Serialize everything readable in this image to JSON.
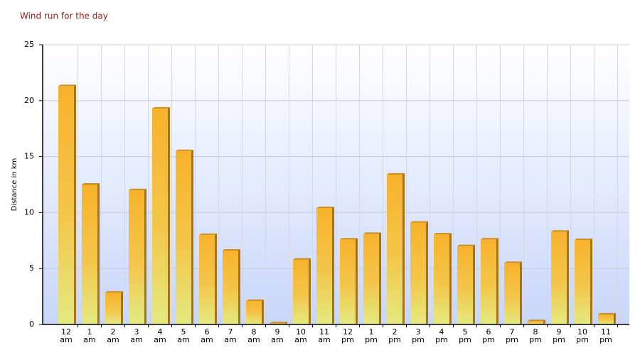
{
  "chart_data": {
    "type": "bar",
    "title": "Wind run for the day",
    "y_label": "Distance in km",
    "categories": [
      "12 am",
      "1 am",
      "2 am",
      "3 am",
      "4 am",
      "5 am",
      "6 am",
      "7 am",
      "8 am",
      "9 am",
      "10 am",
      "11 am",
      "12 pm",
      "1 pm",
      "2 pm",
      "3 pm",
      "4 pm",
      "5 pm",
      "6 pm",
      "7 pm",
      "8 pm",
      "9 pm",
      "10 pm",
      "11 pm"
    ],
    "values": [
      21.3,
      12.5,
      2.85,
      12.0,
      19.3,
      15.5,
      8.0,
      6.6,
      2.1,
      0.1,
      5.8,
      10.4,
      7.6,
      8.1,
      13.4,
      9.1,
      8.05,
      7.0,
      7.6,
      5.5,
      0.3,
      8.3,
      7.55,
      0.9
    ],
    "color": "#f5b530",
    "ylim": [
      0,
      25
    ],
    "yticks": [
      0,
      5,
      10,
      15,
      20,
      25
    ],
    "grid": true
  }
}
